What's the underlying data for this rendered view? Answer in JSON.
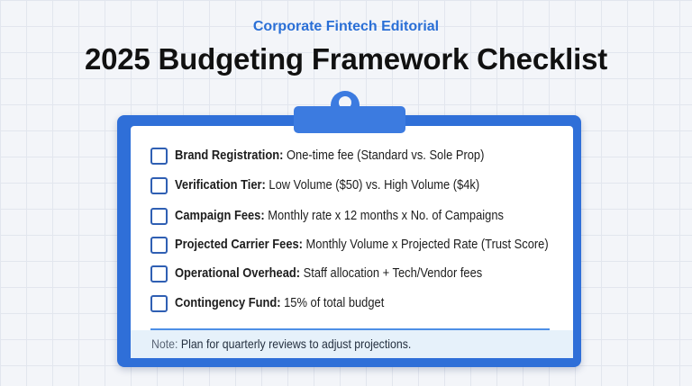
{
  "header": {
    "kicker": "Corporate Fintech Editorial",
    "title": "2025 Budgeting Framework Checklist"
  },
  "checklist": {
    "items": [
      {
        "label": "Brand Registration:",
        "text": "One-time fee (Standard vs. Sole Prop)"
      },
      {
        "label": "Verification Tier:",
        "text": "Low Volume ($50) vs. High Volume ($4k)"
      },
      {
        "label": "Campaign Fees:",
        "text": "Monthly rate x 12 months x No. of Campaigns"
      },
      {
        "label": "Projected Carrier Fees:",
        "text": "Monthly Volume x Projected Rate (Trust Score)"
      },
      {
        "label": "Operational Overhead:",
        "text": "Staff allocation + Tech/Vendor fees"
      },
      {
        "label": "Contingency Fund:",
        "text": "15% of total budget"
      }
    ]
  },
  "note": {
    "label": "Note:",
    "text": "Plan for quarterly reviews to adjust projections."
  }
}
